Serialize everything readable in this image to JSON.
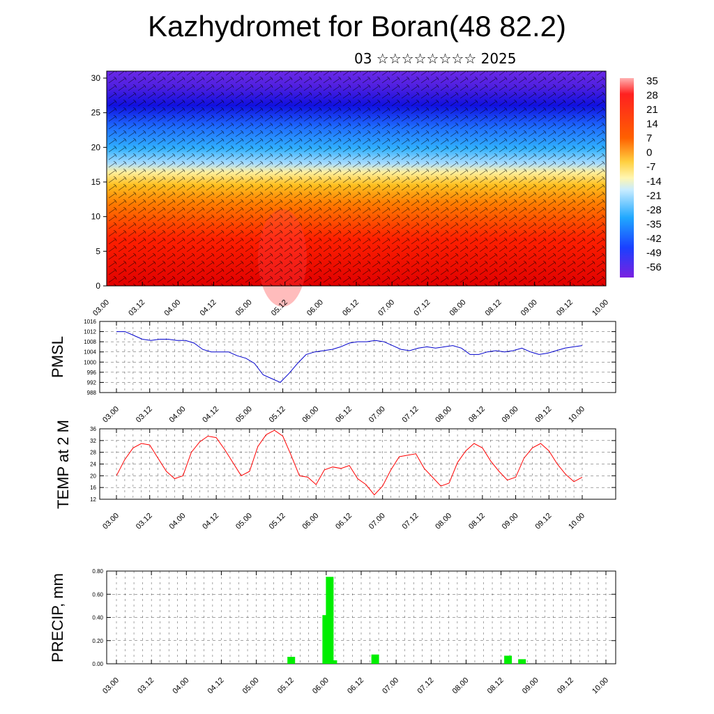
{
  "header": {
    "title": "Kazhydromet for Boran(48 82.2)",
    "subtitle": "03 ☆☆☆☆☆☆☆☆ 2025"
  },
  "time_ticks": [
    "03.00",
    "03.12",
    "04.00",
    "04.12",
    "05.00",
    "05.12",
    "06.00",
    "06.12",
    "07.00",
    "07.12",
    "08.00",
    "08.12",
    "09.00",
    "09.12",
    "10.00"
  ],
  "colorbar": {
    "labels": [
      "35",
      "28",
      "21",
      "14",
      "7",
      "0",
      "-7",
      "-14",
      "-21",
      "-28",
      "-35",
      "-42",
      "-49",
      "-56"
    ],
    "colors": {
      "hot": "#ff0000",
      "warm": "#ffd21e",
      "cold": "#1e46ff",
      "cold_top": "#7a20e0"
    }
  },
  "chart_data": [
    {
      "type": "heatmap",
      "title": "",
      "description_of_field": "temperature vs height with wind barbs",
      "ylim": [
        0,
        30
      ],
      "yticks": [
        0,
        5,
        10,
        15,
        20,
        25,
        30
      ],
      "xlim": [
        0,
        14
      ],
      "color_range": [
        -56,
        35
      ]
    },
    {
      "type": "line",
      "ylabel": "PMSL",
      "ylim": [
        988,
        1016
      ],
      "yticks": [
        988,
        992,
        996,
        1000,
        1004,
        1008,
        1012,
        1016
      ],
      "color": "#0000cc",
      "values": [
        1012,
        1012,
        1010.5,
        1009,
        1008.5,
        1009,
        1009,
        1008.5,
        1008.5,
        1007.5,
        1005,
        1004,
        1004,
        1004,
        1002.5,
        1001.5,
        999.5,
        995,
        993.5,
        992,
        995.5,
        999.5,
        1003,
        1004,
        1004.5,
        1005,
        1006,
        1007.5,
        1008,
        1008,
        1008.5,
        1008,
        1006.5,
        1005,
        1004.5,
        1005.5,
        1006,
        1005.5,
        1006,
        1006.5,
        1005.5,
        1003,
        1003,
        1004,
        1004.5,
        1004,
        1004.5,
        1005.5,
        1004,
        1003,
        1003.5,
        1004.5,
        1005.5,
        1006,
        1006.5
      ]
    },
    {
      "type": "line",
      "ylabel": "TEMP at 2 M",
      "ylim": [
        12,
        36
      ],
      "yticks": [
        12,
        16,
        20,
        24,
        28,
        32,
        36
      ],
      "color": "#ff0000",
      "values": [
        20,
        25.5,
        29.5,
        31,
        30.5,
        26,
        21.5,
        19,
        20,
        28,
        31.5,
        33.5,
        33,
        29,
        24.5,
        20,
        21.5,
        30,
        34,
        35.5,
        33.5,
        27,
        20,
        19.5,
        17,
        22,
        23,
        22.5,
        23.5,
        19,
        17,
        13.5,
        16.5,
        22,
        26.5,
        27,
        27.5,
        22.5,
        19.5,
        16.5,
        17.5,
        24.5,
        28.5,
        31,
        29.5,
        25,
        21.5,
        18.5,
        19.5,
        26,
        29.5,
        31,
        28.5,
        24,
        20.5,
        18,
        19.5
      ]
    },
    {
      "type": "bar",
      "ylabel": "PRECIP, mm",
      "ylim": [
        0,
        0.8
      ],
      "yticks": [
        "0.00",
        "0.20",
        "0.40",
        "0.60",
        "0.80"
      ],
      "color": "#00ee00",
      "bars": [
        {
          "x": 5.0,
          "value": 0.06
        },
        {
          "x": 6.0,
          "value": 0.42
        },
        {
          "x": 6.1,
          "value": 0.75
        },
        {
          "x": 6.2,
          "value": 0.03
        },
        {
          "x": 7.4,
          "value": 0.08
        },
        {
          "x": 11.2,
          "value": 0.07
        },
        {
          "x": 11.6,
          "value": 0.04
        }
      ]
    }
  ]
}
